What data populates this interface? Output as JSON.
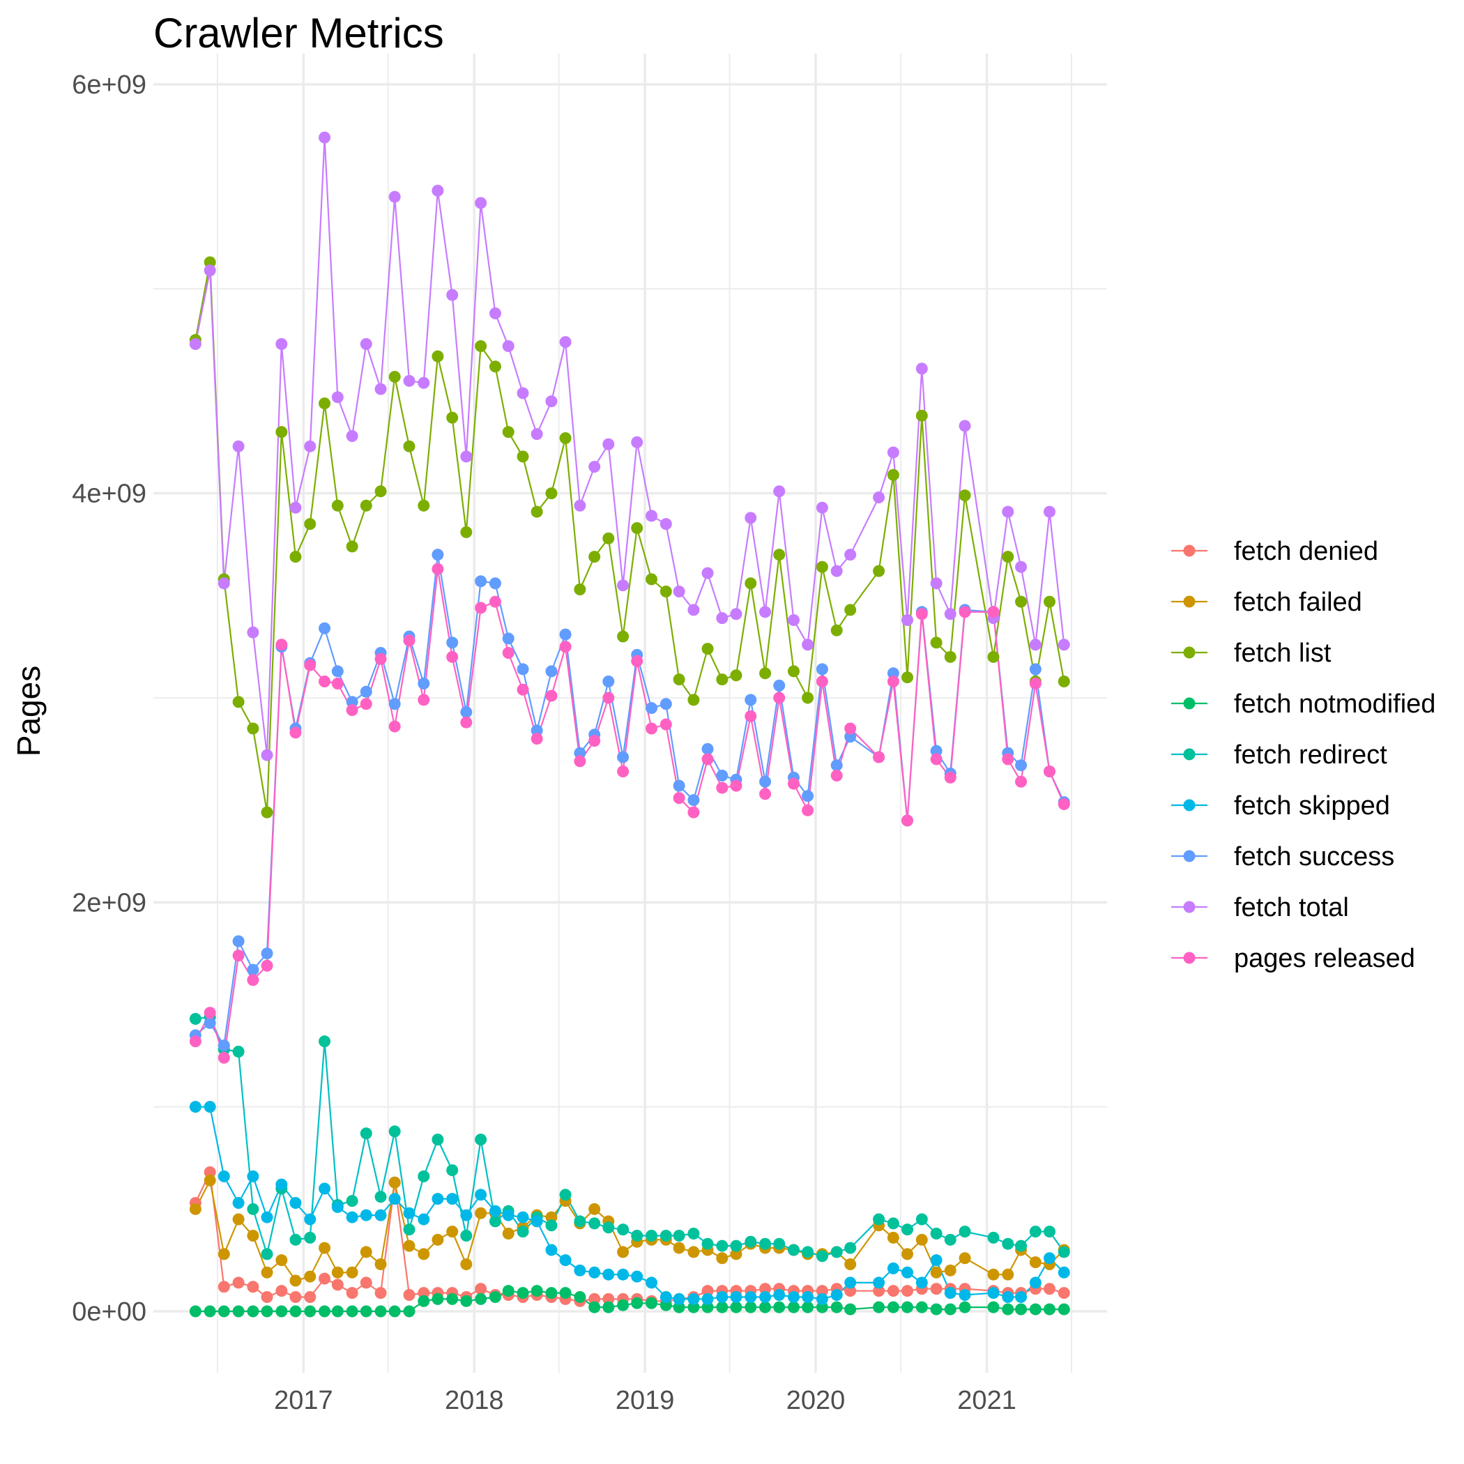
{
  "chart_data": {
    "type": "line",
    "title": "Crawler Metrics",
    "xlabel": "",
    "ylabel": "Pages",
    "xlim": [
      "2016-02-15",
      "2021-09-15"
    ],
    "ylim": [
      -300000000,
      6150000000
    ],
    "y_ticks": [
      {
        "value": 0,
        "label": "0e+00"
      },
      {
        "value": 2000000000,
        "label": "2e+09"
      },
      {
        "value": 4000000000,
        "label": "4e+09"
      },
      {
        "value": 6000000000,
        "label": "6e+09"
      }
    ],
    "x_ticks": [
      {
        "value": "2017-01-01",
        "label": "2017"
      },
      {
        "value": "2018-01-01",
        "label": "2018"
      },
      {
        "value": "2019-01-01",
        "label": "2019"
      },
      {
        "value": "2020-01-01",
        "label": "2020"
      },
      {
        "value": "2021-01-01",
        "label": "2021"
      }
    ],
    "grid": true,
    "legend_position": "right",
    "x": [
      "2016-05",
      "2016-06",
      "2016-07",
      "2016-08",
      "2016-09",
      "2016-10",
      "2016-11",
      "2016-12",
      "2017-01",
      "2017-02",
      "2017-03",
      "2017-04",
      "2017-05",
      "2017-06",
      "2017-07",
      "2017-08",
      "2017-09",
      "2017-10",
      "2017-11",
      "2017-12",
      "2018-01",
      "2018-02",
      "2018-03",
      "2018-04",
      "2018-05",
      "2018-06",
      "2018-07",
      "2018-08",
      "2018-09",
      "2018-10",
      "2018-11",
      "2018-12",
      "2019-01",
      "2019-02",
      "2019-03",
      "2019-04",
      "2019-05",
      "2019-06",
      "2019-07",
      "2019-08",
      "2019-09",
      "2019-10",
      "2019-11",
      "2019-12",
      "2020-01",
      "2020-02",
      "2020-03",
      "2020-05",
      "2020-06",
      "2020-07",
      "2020-08",
      "2020-09",
      "2020-10",
      "2020-11",
      "2021-01",
      "2021-02",
      "2021-03",
      "2021-04",
      "2021-05",
      "2021-06"
    ],
    "series": [
      {
        "name": "fetch denied",
        "color": "#F8766D",
        "values": [
          530000000,
          680000000,
          120000000,
          140000000,
          120000000,
          70000000,
          100000000,
          70000000,
          70000000,
          160000000,
          130000000,
          90000000,
          140000000,
          90000000,
          630000000,
          80000000,
          90000000,
          90000000,
          90000000,
          70000000,
          110000000,
          80000000,
          80000000,
          70000000,
          80000000,
          70000000,
          60000000,
          50000000,
          60000000,
          60000000,
          60000000,
          60000000,
          50000000,
          50000000,
          60000000,
          70000000,
          100000000,
          100000000,
          100000000,
          100000000,
          110000000,
          110000000,
          100000000,
          100000000,
          100000000,
          110000000,
          100000000,
          100000000,
          100000000,
          100000000,
          110000000,
          110000000,
          110000000,
          110000000,
          100000000,
          90000000,
          90000000,
          110000000,
          110000000,
          90000000
        ]
      },
      {
        "name": "fetch failed",
        "color": "#CD9600",
        "values": [
          500000000,
          640000000,
          280000000,
          450000000,
          370000000,
          190000000,
          250000000,
          150000000,
          170000000,
          310000000,
          190000000,
          190000000,
          290000000,
          230000000,
          630000000,
          320000000,
          280000000,
          350000000,
          390000000,
          230000000,
          480000000,
          480000000,
          380000000,
          410000000,
          470000000,
          460000000,
          540000000,
          430000000,
          500000000,
          440000000,
          290000000,
          340000000,
          350000000,
          350000000,
          310000000,
          290000000,
          300000000,
          260000000,
          280000000,
          330000000,
          310000000,
          310000000,
          300000000,
          280000000,
          280000000,
          290000000,
          230000000,
          420000000,
          360000000,
          280000000,
          350000000,
          190000000,
          200000000,
          260000000,
          180000000,
          180000000,
          300000000,
          240000000,
          230000000,
          300000000
        ]
      },
      {
        "name": "fetch list",
        "color": "#7CAE00",
        "values": [
          4750000000,
          5130000000,
          3580000000,
          2980000000,
          2850000000,
          2440000000,
          4300000000,
          3690000000,
          3850000000,
          4440000000,
          3940000000,
          3740000000,
          3940000000,
          4010000000,
          4570000000,
          4230000000,
          3940000000,
          4670000000,
          4370000000,
          3810000000,
          4720000000,
          4620000000,
          4300000000,
          4180000000,
          3910000000,
          4000000000,
          4270000000,
          3530000000,
          3690000000,
          3780000000,
          3300000000,
          3830000000,
          3580000000,
          3520000000,
          3090000000,
          2990000000,
          3240000000,
          3090000000,
          3110000000,
          3560000000,
          3120000000,
          3700000000,
          3130000000,
          3000000000,
          3640000000,
          3330000000,
          3430000000,
          3620000000,
          4090000000,
          3100000000,
          4380000000,
          3270000000,
          3200000000,
          3990000000,
          3200000000,
          3690000000,
          3470000000,
          3080000000,
          3470000000,
          3080000000
        ]
      },
      {
        "name": "fetch notmodified",
        "color": "#00BE67",
        "values": [
          0,
          0,
          0,
          0,
          0,
          0,
          0,
          0,
          0,
          0,
          0,
          0,
          0,
          0,
          0,
          0,
          50000000,
          60000000,
          60000000,
          50000000,
          60000000,
          70000000,
          100000000,
          90000000,
          100000000,
          90000000,
          90000000,
          70000000,
          20000000,
          20000000,
          30000000,
          40000000,
          40000000,
          30000000,
          20000000,
          20000000,
          20000000,
          20000000,
          20000000,
          20000000,
          20000000,
          20000000,
          20000000,
          20000000,
          20000000,
          20000000,
          10000000,
          20000000,
          20000000,
          20000000,
          20000000,
          10000000,
          10000000,
          20000000,
          20000000,
          10000000,
          10000000,
          10000000,
          10000000,
          10000000
        ]
      },
      {
        "name": "fetch redirect",
        "color": "#00BFC4",
        "dot_color": "#00C19A",
        "values": [
          1430000000,
          1440000000,
          1280000000,
          1270000000,
          500000000,
          280000000,
          600000000,
          350000000,
          360000000,
          1320000000,
          520000000,
          540000000,
          870000000,
          560000000,
          880000000,
          400000000,
          660000000,
          840000000,
          690000000,
          370000000,
          840000000,
          440000000,
          490000000,
          390000000,
          460000000,
          420000000,
          570000000,
          440000000,
          430000000,
          410000000,
          400000000,
          370000000,
          370000000,
          370000000,
          370000000,
          380000000,
          330000000,
          320000000,
          320000000,
          340000000,
          330000000,
          330000000,
          300000000,
          290000000,
          270000000,
          290000000,
          310000000,
          450000000,
          430000000,
          400000000,
          450000000,
          380000000,
          350000000,
          390000000,
          360000000,
          330000000,
          320000000,
          390000000,
          390000000,
          290000000
        ]
      },
      {
        "name": "fetch skipped",
        "color": "#00B8E7",
        "values": [
          1000000000,
          1000000000,
          660000000,
          530000000,
          660000000,
          460000000,
          620000000,
          530000000,
          450000000,
          600000000,
          510000000,
          460000000,
          470000000,
          470000000,
          550000000,
          480000000,
          450000000,
          550000000,
          550000000,
          470000000,
          570000000,
          490000000,
          470000000,
          460000000,
          440000000,
          300000000,
          250000000,
          200000000,
          190000000,
          180000000,
          180000000,
          170000000,
          140000000,
          70000000,
          60000000,
          60000000,
          60000000,
          70000000,
          70000000,
          70000000,
          70000000,
          80000000,
          70000000,
          70000000,
          60000000,
          80000000,
          140000000,
          140000000,
          210000000,
          190000000,
          140000000,
          250000000,
          90000000,
          80000000,
          90000000,
          70000000,
          70000000,
          140000000,
          260000000,
          190000000
        ]
      },
      {
        "name": "fetch success",
        "color": "#619CFF",
        "values": [
          1350000000,
          1410000000,
          1300000000,
          1810000000,
          1670000000,
          1750000000,
          3250000000,
          2850000000,
          3170000000,
          3340000000,
          3130000000,
          2980000000,
          3030000000,
          3220000000,
          2970000000,
          3300000000,
          3070000000,
          3700000000,
          3270000000,
          2930000000,
          3570000000,
          3560000000,
          3290000000,
          3140000000,
          2840000000,
          3130000000,
          3310000000,
          2730000000,
          2820000000,
          3080000000,
          2710000000,
          3210000000,
          2950000000,
          2970000000,
          2570000000,
          2500000000,
          2750000000,
          2620000000,
          2600000000,
          2990000000,
          2590000000,
          3060000000,
          2610000000,
          2520000000,
          3140000000,
          2670000000,
          2810000000,
          2710000000,
          3120000000,
          2400000000,
          3420000000,
          2740000000,
          2630000000,
          3430000000,
          3420000000,
          2730000000,
          2670000000,
          3140000000,
          2640000000,
          2490000000
        ]
      },
      {
        "name": "fetch total",
        "color": "#C77CFF",
        "values": [
          4730000000,
          5090000000,
          3560000000,
          4230000000,
          3320000000,
          2720000000,
          4730000000,
          3930000000,
          4230000000,
          5740000000,
          4470000000,
          4280000000,
          4730000000,
          4510000000,
          5450000000,
          4550000000,
          4540000000,
          5480000000,
          4970000000,
          4180000000,
          5420000000,
          4880000000,
          4720000000,
          4490000000,
          4290000000,
          4450000000,
          4740000000,
          3940000000,
          4130000000,
          4240000000,
          3550000000,
          4250000000,
          3890000000,
          3850000000,
          3520000000,
          3430000000,
          3610000000,
          3390000000,
          3410000000,
          3880000000,
          3420000000,
          4010000000,
          3380000000,
          3260000000,
          3930000000,
          3620000000,
          3700000000,
          3980000000,
          4200000000,
          3380000000,
          4610000000,
          3560000000,
          3410000000,
          4330000000,
          3390000000,
          3910000000,
          3640000000,
          3260000000,
          3910000000,
          3260000000
        ]
      },
      {
        "name": "pages released",
        "color": "#FF61C3",
        "values": [
          1320000000,
          1460000000,
          1240000000,
          1740000000,
          1620000000,
          1690000000,
          3260000000,
          2830000000,
          3160000000,
          3080000000,
          3070000000,
          2940000000,
          2970000000,
          3190000000,
          2860000000,
          3280000000,
          2990000000,
          3630000000,
          3200000000,
          2880000000,
          3440000000,
          3470000000,
          3220000000,
          3040000000,
          2800000000,
          3010000000,
          3250000000,
          2690000000,
          2790000000,
          3000000000,
          2640000000,
          3180000000,
          2850000000,
          2870000000,
          2510000000,
          2440000000,
          2700000000,
          2560000000,
          2570000000,
          2910000000,
          2530000000,
          3000000000,
          2580000000,
          2450000000,
          3080000000,
          2620000000,
          2850000000,
          2710000000,
          3080000000,
          2400000000,
          3410000000,
          2700000000,
          2610000000,
          3420000000,
          3420000000,
          2700000000,
          2590000000,
          3070000000,
          2640000000,
          2480000000
        ]
      }
    ]
  }
}
